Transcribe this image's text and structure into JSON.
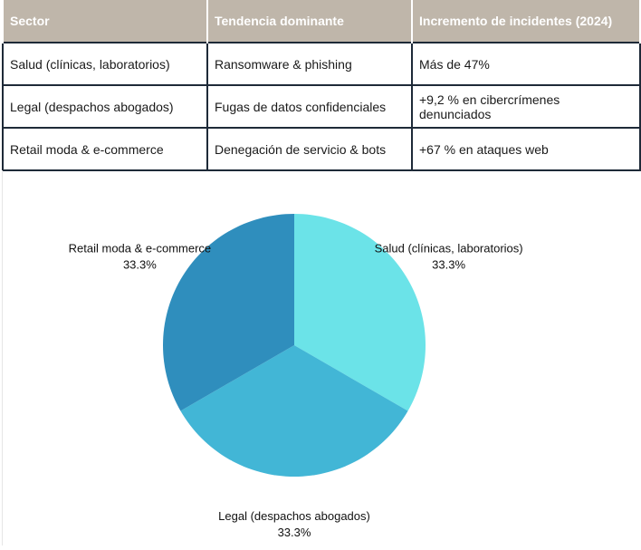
{
  "table": {
    "headers": [
      "Sector",
      "Tendencia dominante",
      "Incremento de incidentes (2024)"
    ],
    "rows": [
      [
        "Salud (clínicas, laboratorios)",
        "Ransomware & phishing",
        "Más de 47%"
      ],
      [
        "Legal (despachos abogados)",
        "Fugas de datos confidenciales",
        "+9,2 % en cibercrímenes denunciados"
      ],
      [
        "Retail moda & e-commerce",
        "Denegación de servicio & bots",
        "+67 % en ataques web"
      ]
    ],
    "header_color": "#bfb6aa",
    "border_color": "#1e2a38"
  },
  "chart_data": {
    "type": "pie",
    "title": "",
    "start_angle_deg": 0,
    "direction": "clockwise",
    "slices": [
      {
        "label": "Salud (clínicas, laboratorios)",
        "value": 33.3,
        "pct_label": "33.3%",
        "color": "#6be3e8"
      },
      {
        "label": "Legal (despachos abogados)",
        "value": 33.3,
        "pct_label": "33.3%",
        "color": "#42b6d6"
      },
      {
        "label": "Retail moda & e-commerce",
        "value": 33.3,
        "pct_label": "33.3%",
        "color": "#2f8ebd"
      }
    ]
  }
}
